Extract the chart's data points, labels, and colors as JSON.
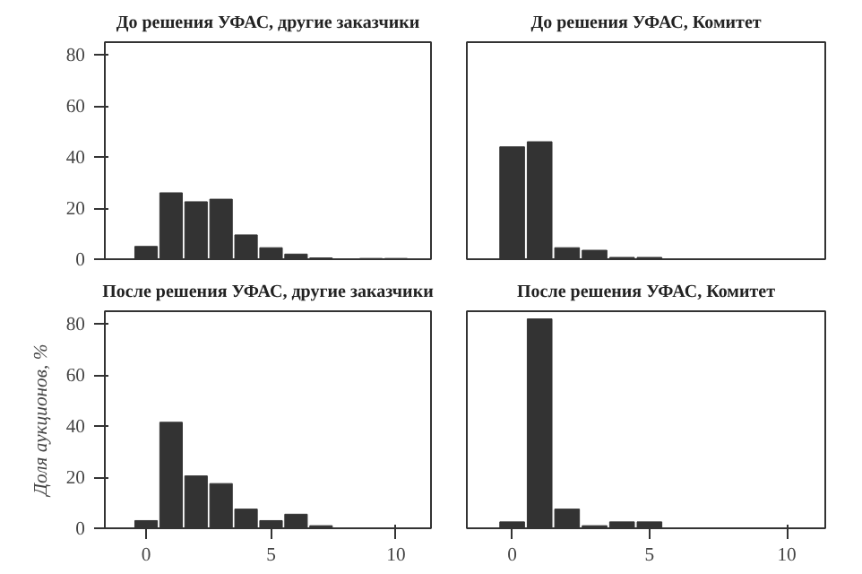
{
  "chart_data": [
    {
      "type": "histogram",
      "title": "До решения УФАС, другие заказчики",
      "bins": [
        -0.5,
        0.5,
        1.5,
        2.5,
        3.5,
        4.5,
        5.5,
        6.5,
        7.5,
        8.5,
        9.5,
        10.5
      ],
      "values": [
        5,
        26,
        22.5,
        23.5,
        9.5,
        4.5,
        2,
        0.5,
        0,
        0.3,
        0.3
      ],
      "color": "#333333",
      "xlim": [
        -1.65,
        11.4
      ],
      "ylim": [
        0,
        85
      ],
      "xticks": [
        0,
        5,
        10
      ],
      "yticks": [
        0,
        20,
        40,
        60,
        80
      ],
      "tick_labels": "y",
      "grid": false
    },
    {
      "type": "histogram",
      "title": "До решения УФАС, Комитет",
      "bins": [
        -0.5,
        0.5,
        1.5,
        2.5,
        3.5,
        4.5,
        5.5,
        6.5,
        7.5,
        8.5,
        9.5,
        10.5
      ],
      "values": [
        44,
        46,
        4.5,
        3.5,
        0.7,
        0.7,
        0,
        0,
        0,
        0,
        0
      ],
      "color": "#333333",
      "xlim": [
        -1.65,
        11.4
      ],
      "ylim": [
        0,
        85
      ],
      "xticks": [
        0,
        5,
        10
      ],
      "yticks": [
        0,
        20,
        40,
        60,
        80
      ],
      "tick_labels": false,
      "grid": false
    },
    {
      "type": "histogram",
      "title": "После решения УФАС, другие заказчики",
      "ylabel": "Доля аукционов, %",
      "bins": [
        -0.5,
        0.5,
        1.5,
        2.5,
        3.5,
        4.5,
        5.5,
        6.5,
        7.5,
        8.5,
        9.5,
        10.5
      ],
      "values": [
        3,
        41.5,
        20.5,
        17.5,
        7.5,
        3,
        5.5,
        1,
        0,
        0,
        0
      ],
      "color": "#333333",
      "xlim": [
        -1.65,
        11.4
      ],
      "ylim": [
        0,
        85
      ],
      "xticks": [
        0,
        5,
        10
      ],
      "yticks": [
        0,
        20,
        40,
        60,
        80
      ],
      "grid": false
    },
    {
      "type": "histogram",
      "title": "После решения УФАС, Комитет",
      "bins": [
        -0.5,
        0.5,
        1.5,
        2.5,
        3.5,
        4.5,
        5.5,
        6.5,
        7.5,
        8.5,
        9.5,
        10.5
      ],
      "values": [
        2.5,
        82,
        7.5,
        1,
        2.5,
        2.5,
        0,
        0,
        0,
        0,
        0
      ],
      "color": "#333333",
      "xlim": [
        -1.65,
        11.4
      ],
      "ylim": [
        0,
        85
      ],
      "xticks": [
        0,
        5,
        10
      ],
      "yticks": [
        0,
        20,
        40,
        60,
        80
      ],
      "tick_labels": "x",
      "grid": false
    }
  ]
}
